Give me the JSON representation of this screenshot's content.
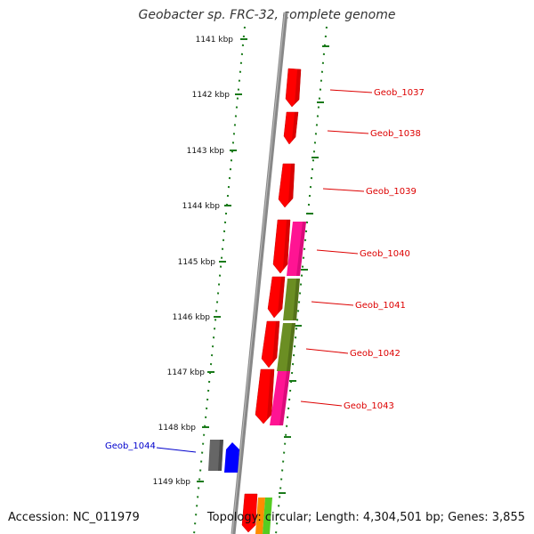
{
  "title": "Geobacter sp. FRC-32, complete genome",
  "accession_text": "Accession: NC_011979",
  "summary_text": "Topology: circular; Length: 4,304,501 bp; Genes: 3,855",
  "colors": {
    "backbone": "#888888",
    "tick": "#1a7a1a",
    "red_gene": "#ff0000",
    "red_label": "#dd0000",
    "magenta_gene": "#ff1493",
    "olive_gene": "#6b8e23",
    "grey_gene": "#666666",
    "blue_gene": "#0000ff",
    "blue_label": "#0000cc"
  },
  "kbp_labels": [
    "1141 kbp",
    "1142 kbp",
    "1143 kbp",
    "1144 kbp",
    "1145 kbp",
    "1146 kbp",
    "1147 kbp",
    "1148 kbp",
    "1149 kbp"
  ],
  "gene_labels": [
    {
      "name": "Geob_1037",
      "color": "red"
    },
    {
      "name": "Geob_1038",
      "color": "red"
    },
    {
      "name": "Geob_1039",
      "color": "red"
    },
    {
      "name": "Geob_1040",
      "color": "red"
    },
    {
      "name": "Geob_1041",
      "color": "red"
    },
    {
      "name": "Geob_1042",
      "color": "red"
    },
    {
      "name": "Geob_1043",
      "color": "red"
    },
    {
      "name": "Geob_1044",
      "color": "blue"
    }
  ]
}
